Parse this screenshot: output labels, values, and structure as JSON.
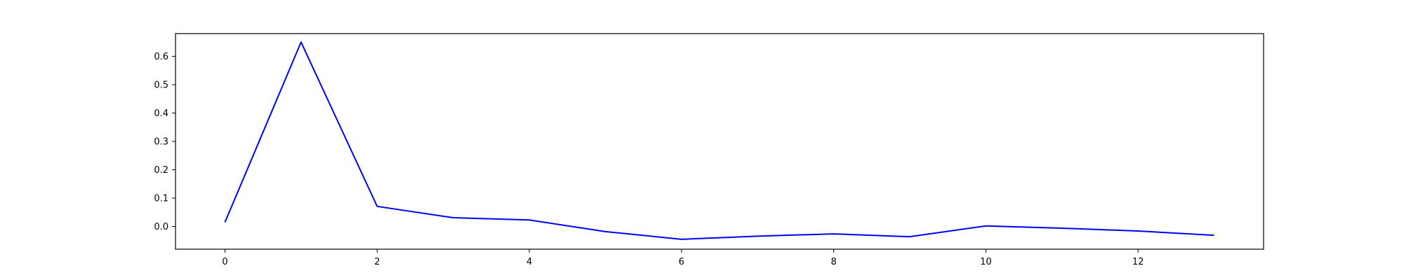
{
  "chart_data": {
    "type": "line",
    "title": "",
    "xlabel": "",
    "ylabel": "",
    "x": [
      0,
      1,
      2,
      3,
      4,
      5,
      6,
      7,
      8,
      9,
      10,
      11,
      12,
      13
    ],
    "series": [
      {
        "color": "#0000ff",
        "values": [
          0.015,
          0.65,
          0.071,
          0.031,
          0.023,
          -0.018,
          -0.045,
          -0.034,
          -0.026,
          -0.036,
          0.002,
          -0.006,
          -0.016,
          -0.031
        ]
      }
    ],
    "xlim": [
      -0.65,
      13.65
    ],
    "ylim": [
      -0.08,
      0.68
    ],
    "xticks": [
      0,
      2,
      4,
      6,
      8,
      10,
      12
    ],
    "yticks": [
      0.0,
      0.1,
      0.2,
      0.3,
      0.4,
      0.5,
      0.6
    ],
    "xtick_labels": [
      "0",
      "2",
      "4",
      "6",
      "8",
      "10",
      "12"
    ],
    "ytick_labels": [
      "0.0",
      "0.1",
      "0.2",
      "0.3",
      "0.4",
      "0.5",
      "0.6"
    ],
    "grid": false,
    "legend": "none"
  }
}
